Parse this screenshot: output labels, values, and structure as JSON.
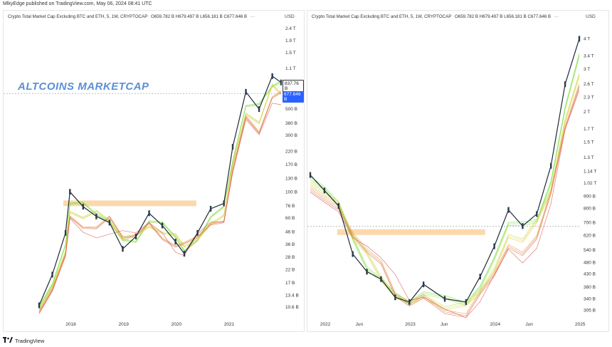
{
  "header": {
    "text": "MlkyEdge published on TradingView.com, May 06, 2024 08:41 UTC"
  },
  "footer": {
    "logo": "TradingView",
    "logo_icon": "tv-logo-icon"
  },
  "left_panel": {
    "title": "Crypto Total Market Cap Excluding BTC and ETH, 5, 1W, CRYPTOCAP",
    "ohlc": "O659.782 B  H679.497 B  L656.181 B  C677.646 B",
    "ellipsis": "···",
    "currency": "USD",
    "overlay_title": "ALTCOINS MARKETCAP",
    "price_tag_1": "837.76 B",
    "price_tag_2": "677.646 B",
    "y_ticks": [
      "2.4 T",
      "1.9 T",
      "1.5 T",
      "1.1 T",
      "500 B",
      "380 B",
      "300 B",
      "220 B",
      "170 B",
      "130 B",
      "100 B",
      "76 B",
      "60 B",
      "46 B",
      "36 B",
      "28 B",
      "22 B",
      "17 B",
      "13.4 B",
      "10.6 B"
    ],
    "x_ticks": [
      "2018",
      "2019",
      "2020",
      "2021"
    ]
  },
  "right_panel": {
    "title": "Crypto Total Market Cap Excluding BTC and ETH, 5, 1W, CRYPTOCAP",
    "ohlc": "O659.782 B  H679.497 B  L656.181 B  C677.646 B",
    "ellipsis": "···",
    "currency": "USD",
    "y_ticks": [
      "4 T",
      "3.4 T",
      "3 T",
      "2.6 T",
      "2.3 T",
      "2 T",
      "1.7 T",
      "1.5 T",
      "1.3 T",
      "1.14 T",
      "1.02 T",
      "900 B",
      "800 B",
      "700 B",
      "620 B",
      "540 B",
      "480 B",
      "430 B",
      "380 B",
      "340 B",
      "305 B"
    ],
    "x_ticks": [
      "2022",
      "Jun",
      "2023",
      "Jun",
      "2024",
      "Jun",
      "2025"
    ]
  },
  "chart_data": [
    {
      "type": "line",
      "scale": "log",
      "title": "Crypto Total Market Cap Excluding BTC and ETH, 5, 1W, CRYPTOCAP",
      "annotation": "ALTCOINS MARKETCAP",
      "ylabel": "USD",
      "x": [
        "2017-06",
        "2017-09",
        "2017-12",
        "2018-01",
        "2018-04",
        "2018-07",
        "2018-10",
        "2019-01",
        "2019-04",
        "2019-07",
        "2019-10",
        "2020-01",
        "2020-03",
        "2020-06",
        "2020-09",
        "2020-12",
        "2021-02",
        "2021-05",
        "2021-08",
        "2021-11",
        "2022-01"
      ],
      "series": [
        {
          "name": "",
          "values": [
            11,
            20,
            45,
            100,
            75,
            62,
            55,
            33,
            42,
            66,
            52,
            38,
            30,
            45,
            72,
            80,
            240,
            700,
            500,
            950,
            840
          ]
        }
      ],
      "highlight_level": 80,
      "last_price": 677.646,
      "ylim": [
        9,
        2500
      ]
    },
    {
      "type": "line",
      "scale": "log",
      "title": "Crypto Total Market Cap Excluding BTC and ETH, 5, 1W, CRYPTOCAP",
      "ylabel": "USD",
      "x": [
        "2021-11",
        "2022-01",
        "2022-03",
        "2022-05",
        "2022-07",
        "2022-09",
        "2022-11",
        "2023-01",
        "2023-03",
        "2023-06",
        "2023-09",
        "2023-11",
        "2024-01",
        "2024-03",
        "2024-05",
        "2024-07",
        "2024-09",
        "2024-11",
        "2025-01"
      ],
      "series": [
        {
          "name": "",
          "values": [
            1100,
            950,
            820,
            520,
            440,
            410,
            345,
            330,
            390,
            340,
            330,
            420,
            560,
            790,
            678,
            760,
            1200,
            2600,
            4000
          ]
        }
      ],
      "highlight_level": 640,
      "last_price": 677.646,
      "ylim": [
        290,
        4500
      ]
    }
  ]
}
